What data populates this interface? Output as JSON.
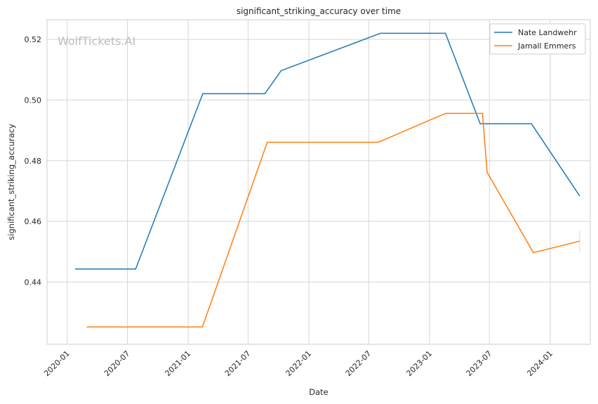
{
  "chart_data": {
    "type": "line",
    "title": "significant_striking_accuracy over time",
    "xlabel": "Date",
    "ylabel": "significant_striking_accuracy",
    "watermark": "WolfTickets.AI",
    "xlim": [
      "2019-11-01",
      "2024-05-01"
    ],
    "ylim": [
      0.4195,
      0.5265
    ],
    "x_ticks": [
      "2020-01",
      "2020-07",
      "2021-01",
      "2021-07",
      "2022-01",
      "2022-07",
      "2023-01",
      "2023-07",
      "2024-01"
    ],
    "y_ticks": [
      0.44,
      0.46,
      0.48,
      0.5,
      0.52
    ],
    "y_tick_labels": [
      "0.44",
      "0.46",
      "0.48",
      "0.50",
      "0.52"
    ],
    "grid": true,
    "legend_position": "top-right",
    "series": [
      {
        "name": "Nate Landwehr",
        "color": "#1f77b4",
        "points": [
          [
            "2020-01-25",
            0.4443
          ],
          [
            "2020-07-26",
            0.4443
          ],
          [
            "2021-02-14",
            0.5021
          ],
          [
            "2021-08-21",
            0.5021
          ],
          [
            "2021-10-09",
            0.5097
          ],
          [
            "2022-08-05",
            0.522
          ],
          [
            "2023-02-18",
            0.522
          ],
          [
            "2023-06-03",
            0.4922
          ],
          [
            "2023-11-05",
            0.4922
          ],
          [
            "2024-03-30",
            0.4684
          ]
        ]
      },
      {
        "name": "Jamall Emmers",
        "color": "#ff7f0e",
        "points": [
          [
            "2020-02-29",
            0.4252
          ],
          [
            "2021-02-13",
            0.4252
          ],
          [
            "2021-08-28",
            0.4861
          ],
          [
            "2022-07-30",
            0.4861
          ],
          [
            "2023-02-18",
            0.4956
          ],
          [
            "2023-06-10",
            0.4956
          ],
          [
            "2023-06-24",
            0.4762
          ],
          [
            "2023-11-11",
            0.4497
          ],
          [
            "2024-03-30",
            0.4535
          ]
        ],
        "error_bar": {
          "x": "2024-03-30",
          "low": 0.4497,
          "high": 0.4572
        }
      }
    ]
  }
}
